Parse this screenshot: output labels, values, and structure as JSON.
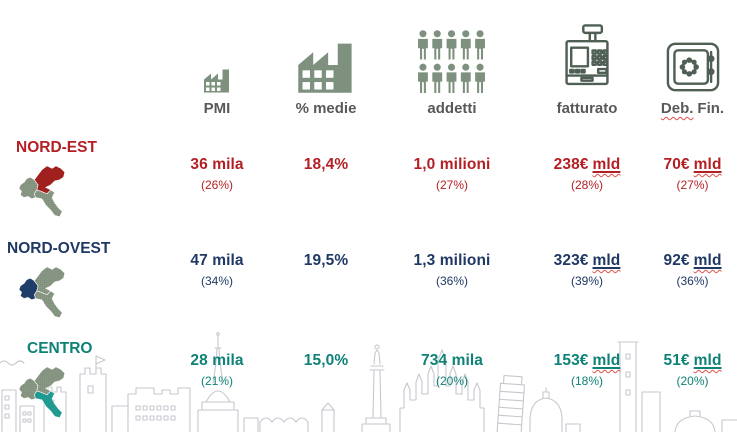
{
  "colors": {
    "text_red": "#b41f24",
    "text_navy": "#1f3864",
    "text_teal": "#0e8276",
    "map_nord_est": "#a6201e",
    "map_nord_ovest": "#1e3e6d",
    "map_centro": "#20a096",
    "map_base": "#8b9a86",
    "header_text": "#595959",
    "icon_fill": "#7e917e",
    "icon_stroke": "#4f5f54",
    "skyline": "#c7c7cf",
    "wavy": "#e2504a"
  },
  "columns": [
    {
      "id": "pmi",
      "label": "PMI",
      "icon": "factory-small-icon"
    },
    {
      "id": "medie",
      "label": "% medie",
      "icon": "factory-large-icon"
    },
    {
      "id": "addetti",
      "label": "addetti",
      "icon": "people-grid-icon"
    },
    {
      "id": "fatturato",
      "label": "fatturato",
      "icon": "cash-register-icon"
    },
    {
      "id": "deb_fin",
      "label_w": "Deb.",
      "label_rest": "Fin.",
      "icon": "safe-icon"
    }
  ],
  "rows": [
    {
      "region": "NORD-EST",
      "highlight": "ne",
      "cells": [
        {
          "main": "36 mila",
          "sub": "(26%)"
        },
        {
          "main": "18,4%"
        },
        {
          "main": "1,0 milioni",
          "sub": "(27%)"
        },
        {
          "main": "238€",
          "unit": "mld",
          "sub": "(28%)"
        },
        {
          "main": "70€",
          "unit": "mld",
          "sub": "(27%)"
        }
      ]
    },
    {
      "region": "NORD-OVEST",
      "highlight": "nw",
      "cells": [
        {
          "main": "47 mila",
          "sub": "(34%)"
        },
        {
          "main": "19,5%"
        },
        {
          "main": "1,3 milioni",
          "sub": "(36%)"
        },
        {
          "main": "323€",
          "unit": "mld",
          "sub": "(39%)"
        },
        {
          "main": "92€",
          "unit": "mld",
          "sub": "(36%)"
        }
      ]
    },
    {
      "region": "CENTRO",
      "highlight": "centro",
      "cells": [
        {
          "main": "28 mila",
          "sub": "(21%)"
        },
        {
          "main": "15,0%"
        },
        {
          "main": "734 mila",
          "sub": "(20%)"
        },
        {
          "main": "153€",
          "unit": "mld",
          "sub": "(18%)"
        },
        {
          "main": "51€",
          "unit": "mld",
          "sub": "(20%)"
        }
      ]
    }
  ]
}
